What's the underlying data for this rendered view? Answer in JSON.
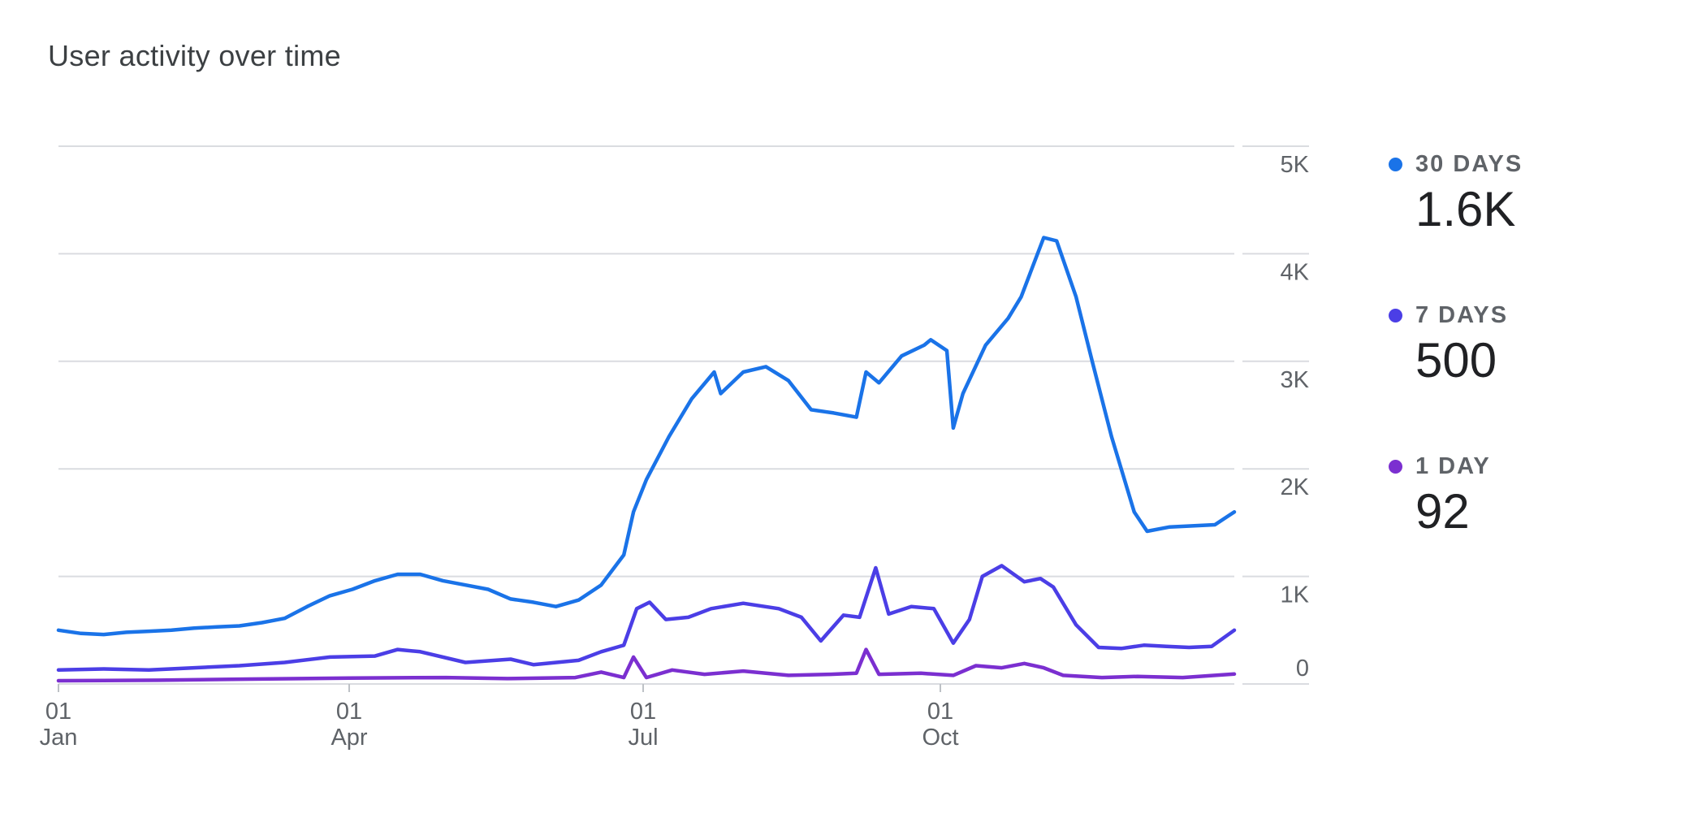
{
  "title": "User activity over time",
  "legend": [
    {
      "label": "30 DAYS",
      "value": "1.6K",
      "color": "#1a73e8"
    },
    {
      "label": "7 DAYS",
      "value": "500",
      "color": "#4b3ee6"
    },
    {
      "label": "1 DAY",
      "value": "92",
      "color": "#7b2fd0"
    }
  ],
  "chart_data": {
    "type": "line",
    "x_range": [
      "2023-01-01",
      "2023-12-31"
    ],
    "y_ticks": [
      {
        "value": 0,
        "label": "0"
      },
      {
        "value": 1000,
        "label": "1K"
      },
      {
        "value": 2000,
        "label": "2K"
      },
      {
        "value": 3000,
        "label": "3K"
      },
      {
        "value": 4000,
        "label": "4K"
      },
      {
        "value": 5000,
        "label": "5K"
      }
    ],
    "x_ticks": [
      {
        "date": "2023-01-01",
        "day": "01",
        "month": "Jan"
      },
      {
        "date": "2023-04-01",
        "day": "01",
        "month": "Apr"
      },
      {
        "date": "2023-07-01",
        "day": "01",
        "month": "Jul"
      },
      {
        "date": "2023-10-01",
        "day": "01",
        "month": "Oct"
      }
    ],
    "ylim": [
      0,
      5000
    ],
    "grid": true,
    "legend_position": "right",
    "series": [
      {
        "name": "30 DAYS",
        "color": "#1a73e8",
        "points": [
          [
            "2023-01-01",
            500
          ],
          [
            "2023-01-08",
            470
          ],
          [
            "2023-01-15",
            460
          ],
          [
            "2023-01-22",
            480
          ],
          [
            "2023-01-29",
            490
          ],
          [
            "2023-02-05",
            500
          ],
          [
            "2023-02-12",
            520
          ],
          [
            "2023-02-19",
            530
          ],
          [
            "2023-02-26",
            540
          ],
          [
            "2023-03-05",
            570
          ],
          [
            "2023-03-12",
            610
          ],
          [
            "2023-03-19",
            720
          ],
          [
            "2023-03-26",
            820
          ],
          [
            "2023-04-02",
            880
          ],
          [
            "2023-04-09",
            960
          ],
          [
            "2023-04-16",
            1020
          ],
          [
            "2023-04-23",
            1020
          ],
          [
            "2023-04-30",
            960
          ],
          [
            "2023-05-07",
            920
          ],
          [
            "2023-05-14",
            880
          ],
          [
            "2023-05-21",
            790
          ],
          [
            "2023-05-28",
            760
          ],
          [
            "2023-06-04",
            720
          ],
          [
            "2023-06-11",
            780
          ],
          [
            "2023-06-18",
            920
          ],
          [
            "2023-06-25",
            1200
          ],
          [
            "2023-06-28",
            1600
          ],
          [
            "2023-07-02",
            1900
          ],
          [
            "2023-07-09",
            2300
          ],
          [
            "2023-07-16",
            2650
          ],
          [
            "2023-07-23",
            2900
          ],
          [
            "2023-07-25",
            2700
          ],
          [
            "2023-08-01",
            2900
          ],
          [
            "2023-08-08",
            2950
          ],
          [
            "2023-08-15",
            2820
          ],
          [
            "2023-08-22",
            2550
          ],
          [
            "2023-08-29",
            2520
          ],
          [
            "2023-09-05",
            2480
          ],
          [
            "2023-09-08",
            2900
          ],
          [
            "2023-09-12",
            2800
          ],
          [
            "2023-09-19",
            3050
          ],
          [
            "2023-09-26",
            3150
          ],
          [
            "2023-09-28",
            3200
          ],
          [
            "2023-10-03",
            3100
          ],
          [
            "2023-10-05",
            2380
          ],
          [
            "2023-10-08",
            2700
          ],
          [
            "2023-10-15",
            3150
          ],
          [
            "2023-10-22",
            3400
          ],
          [
            "2023-10-26",
            3600
          ],
          [
            "2023-11-02",
            4150
          ],
          [
            "2023-11-06",
            4120
          ],
          [
            "2023-11-12",
            3600
          ],
          [
            "2023-11-17",
            3000
          ],
          [
            "2023-11-23",
            2300
          ],
          [
            "2023-11-30",
            1600
          ],
          [
            "2023-12-04",
            1420
          ],
          [
            "2023-12-11",
            1460
          ],
          [
            "2023-12-18",
            1470
          ],
          [
            "2023-12-25",
            1480
          ],
          [
            "2023-12-31",
            1600
          ]
        ]
      },
      {
        "name": "7 DAYS",
        "color": "#4b3ee6",
        "points": [
          [
            "2023-01-01",
            130
          ],
          [
            "2023-01-15",
            140
          ],
          [
            "2023-01-29",
            130
          ],
          [
            "2023-02-12",
            150
          ],
          [
            "2023-02-26",
            170
          ],
          [
            "2023-03-12",
            200
          ],
          [
            "2023-03-26",
            250
          ],
          [
            "2023-04-09",
            260
          ],
          [
            "2023-04-16",
            320
          ],
          [
            "2023-04-23",
            300
          ],
          [
            "2023-05-07",
            200
          ],
          [
            "2023-05-21",
            230
          ],
          [
            "2023-05-28",
            180
          ],
          [
            "2023-06-11",
            220
          ],
          [
            "2023-06-18",
            300
          ],
          [
            "2023-06-25",
            360
          ],
          [
            "2023-06-29",
            700
          ],
          [
            "2023-07-03",
            760
          ],
          [
            "2023-07-08",
            600
          ],
          [
            "2023-07-15",
            620
          ],
          [
            "2023-07-22",
            700
          ],
          [
            "2023-08-01",
            750
          ],
          [
            "2023-08-12",
            700
          ],
          [
            "2023-08-19",
            620
          ],
          [
            "2023-08-25",
            400
          ],
          [
            "2023-09-01",
            640
          ],
          [
            "2023-09-06",
            620
          ],
          [
            "2023-09-11",
            1080
          ],
          [
            "2023-09-15",
            650
          ],
          [
            "2023-09-22",
            720
          ],
          [
            "2023-09-29",
            700
          ],
          [
            "2023-10-05",
            380
          ],
          [
            "2023-10-10",
            600
          ],
          [
            "2023-10-14",
            1000
          ],
          [
            "2023-10-20",
            1100
          ],
          [
            "2023-10-27",
            950
          ],
          [
            "2023-11-01",
            980
          ],
          [
            "2023-11-05",
            900
          ],
          [
            "2023-11-12",
            550
          ],
          [
            "2023-11-19",
            340
          ],
          [
            "2023-11-26",
            330
          ],
          [
            "2023-12-03",
            360
          ],
          [
            "2023-12-10",
            350
          ],
          [
            "2023-12-17",
            340
          ],
          [
            "2023-12-24",
            350
          ],
          [
            "2023-12-31",
            500
          ]
        ]
      },
      {
        "name": "1 DAY",
        "color": "#7b2fd0",
        "points": [
          [
            "2023-01-01",
            30
          ],
          [
            "2023-02-01",
            35
          ],
          [
            "2023-03-01",
            45
          ],
          [
            "2023-04-01",
            55
          ],
          [
            "2023-05-01",
            60
          ],
          [
            "2023-05-20",
            50
          ],
          [
            "2023-06-10",
            60
          ],
          [
            "2023-06-18",
            110
          ],
          [
            "2023-06-25",
            60
          ],
          [
            "2023-06-28",
            250
          ],
          [
            "2023-07-02",
            60
          ],
          [
            "2023-07-10",
            130
          ],
          [
            "2023-07-20",
            90
          ],
          [
            "2023-08-01",
            120
          ],
          [
            "2023-08-15",
            80
          ],
          [
            "2023-08-28",
            90
          ],
          [
            "2023-09-05",
            100
          ],
          [
            "2023-09-08",
            320
          ],
          [
            "2023-09-12",
            90
          ],
          [
            "2023-09-25",
            100
          ],
          [
            "2023-10-05",
            80
          ],
          [
            "2023-10-12",
            170
          ],
          [
            "2023-10-20",
            150
          ],
          [
            "2023-10-27",
            190
          ],
          [
            "2023-11-02",
            150
          ],
          [
            "2023-11-08",
            80
          ],
          [
            "2023-11-20",
            60
          ],
          [
            "2023-12-01",
            70
          ],
          [
            "2023-12-15",
            60
          ],
          [
            "2023-12-31",
            92
          ]
        ]
      }
    ]
  }
}
